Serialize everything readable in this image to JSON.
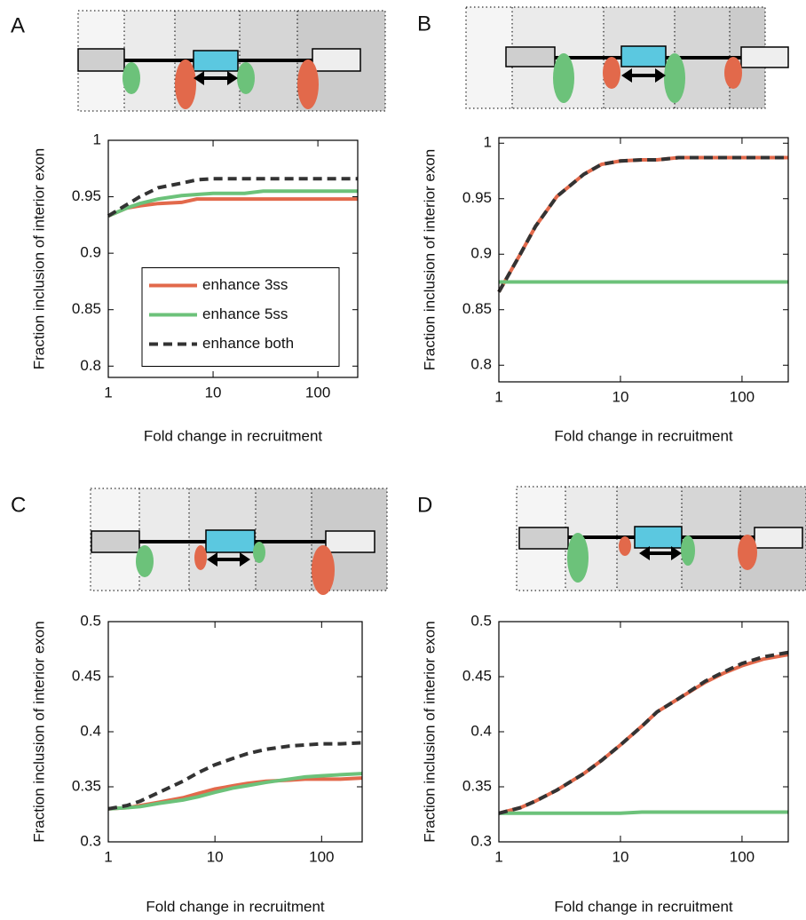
{
  "chart_data": [
    {
      "type": "line",
      "panel": "A",
      "xlabel": "Fold change in recruitment",
      "ylabel": "Fraction inclusion of interior exon",
      "log_x": true,
      "xlim": [
        1,
        240
      ],
      "xticks": [
        1,
        10,
        100
      ],
      "ylim": [
        0.79,
        1
      ],
      "yticks": [
        0.8,
        0.85,
        0.9,
        0.95,
        1
      ],
      "legend": "center right",
      "x": [
        1,
        1.5,
        2,
        3,
        5,
        7,
        10,
        15,
        20,
        30,
        50,
        70,
        100,
        150,
        240
      ],
      "series": [
        {
          "name": "enhance 3ss",
          "color": "#e2694b",
          "dash": false,
          "values": [
            0.933,
            0.94,
            0.942,
            0.944,
            0.945,
            0.948,
            0.948,
            0.948,
            0.948,
            0.948,
            0.948,
            0.948,
            0.948,
            0.948,
            0.948
          ]
        },
        {
          "name": "enhance 5ss",
          "color": "#6cc27a",
          "dash": false,
          "values": [
            0.933,
            0.94,
            0.944,
            0.948,
            0.951,
            0.952,
            0.953,
            0.953,
            0.953,
            0.955,
            0.955,
            0.955,
            0.955,
            0.955,
            0.955
          ]
        },
        {
          "name": "enhance both",
          "color": "#333333",
          "dash": true,
          "values": [
            0.933,
            0.943,
            0.95,
            0.958,
            0.962,
            0.965,
            0.966,
            0.966,
            0.966,
            0.966,
            0.966,
            0.966,
            0.966,
            0.966,
            0.966
          ]
        }
      ]
    },
    {
      "type": "line",
      "panel": "B",
      "xlabel": "Fold change in recruitment",
      "ylabel": "Fraction inclusion of interior exon",
      "log_x": true,
      "xlim": [
        1,
        240
      ],
      "xticks": [
        1,
        10,
        100
      ],
      "ylim": [
        0.785,
        1.005
      ],
      "yticks": [
        0.8,
        0.85,
        0.9,
        0.95,
        1
      ],
      "x": [
        1,
        1.5,
        2,
        3,
        5,
        7,
        10,
        15,
        20,
        30,
        50,
        70,
        100,
        150,
        240
      ],
      "series": [
        {
          "color": "#e2694b",
          "dash": false,
          "values": [
            0.866,
            0.9,
            0.925,
            0.952,
            0.972,
            0.981,
            0.984,
            0.985,
            0.985,
            0.987,
            0.987,
            0.987,
            0.987,
            0.987,
            0.987
          ]
        },
        {
          "color": "#6cc27a",
          "dash": false,
          "values": [
            0.875,
            0.875,
            0.875,
            0.875,
            0.875,
            0.875,
            0.875,
            0.875,
            0.875,
            0.875,
            0.875,
            0.875,
            0.875,
            0.875,
            0.875
          ]
        },
        {
          "color": "#333333",
          "dash": true,
          "values": [
            0.866,
            0.9,
            0.925,
            0.952,
            0.972,
            0.981,
            0.984,
            0.985,
            0.985,
            0.987,
            0.987,
            0.987,
            0.987,
            0.987,
            0.987
          ]
        }
      ]
    },
    {
      "type": "line",
      "panel": "C",
      "xlabel": "Fold change in recruitment",
      "ylabel": "Fraction inclusion of interior exon",
      "log_x": true,
      "xlim": [
        1,
        240
      ],
      "xticks": [
        1,
        10,
        100
      ],
      "ylim": [
        0.3,
        0.5
      ],
      "yticks": [
        0.3,
        0.35,
        0.4,
        0.45,
        0.5
      ],
      "x": [
        1,
        1.5,
        2,
        3,
        5,
        7,
        10,
        15,
        20,
        30,
        50,
        70,
        100,
        150,
        240
      ],
      "series": [
        {
          "color": "#e2694b",
          "dash": false,
          "values": [
            0.33,
            0.331,
            0.333,
            0.336,
            0.34,
            0.344,
            0.348,
            0.351,
            0.353,
            0.355,
            0.356,
            0.357,
            0.357,
            0.357,
            0.358
          ]
        },
        {
          "color": "#6cc27a",
          "dash": false,
          "values": [
            0.33,
            0.331,
            0.332,
            0.335,
            0.338,
            0.341,
            0.345,
            0.349,
            0.351,
            0.354,
            0.357,
            0.359,
            0.36,
            0.361,
            0.362
          ]
        },
        {
          "color": "#333333",
          "dash": true,
          "values": [
            0.33,
            0.333,
            0.337,
            0.345,
            0.355,
            0.363,
            0.37,
            0.376,
            0.38,
            0.384,
            0.387,
            0.388,
            0.389,
            0.389,
            0.39
          ]
        }
      ]
    },
    {
      "type": "line",
      "panel": "D",
      "xlabel": "Fold change in recruitment",
      "ylabel": "Fraction inclusion of interior exon",
      "log_x": true,
      "xlim": [
        1,
        240
      ],
      "xticks": [
        1,
        10,
        100
      ],
      "ylim": [
        0.3,
        0.5
      ],
      "yticks": [
        0.3,
        0.35,
        0.4,
        0.45,
        0.5
      ],
      "x": [
        1,
        1.5,
        2,
        3,
        5,
        7,
        10,
        15,
        20,
        30,
        50,
        70,
        100,
        150,
        240
      ],
      "series": [
        {
          "color": "#e2694b",
          "dash": false,
          "values": [
            0.326,
            0.331,
            0.337,
            0.347,
            0.362,
            0.374,
            0.388,
            0.405,
            0.418,
            0.43,
            0.445,
            0.453,
            0.46,
            0.466,
            0.47
          ]
        },
        {
          "color": "#6cc27a",
          "dash": false,
          "values": [
            0.326,
            0.326,
            0.326,
            0.326,
            0.326,
            0.326,
            0.326,
            0.327,
            0.327,
            0.327,
            0.327,
            0.327,
            0.327,
            0.327,
            0.327
          ]
        },
        {
          "color": "#333333",
          "dash": true,
          "values": [
            0.326,
            0.331,
            0.337,
            0.347,
            0.362,
            0.374,
            0.388,
            0.405,
            0.418,
            0.43,
            0.446,
            0.454,
            0.462,
            0.468,
            0.472
          ]
        }
      ]
    }
  ]
}
